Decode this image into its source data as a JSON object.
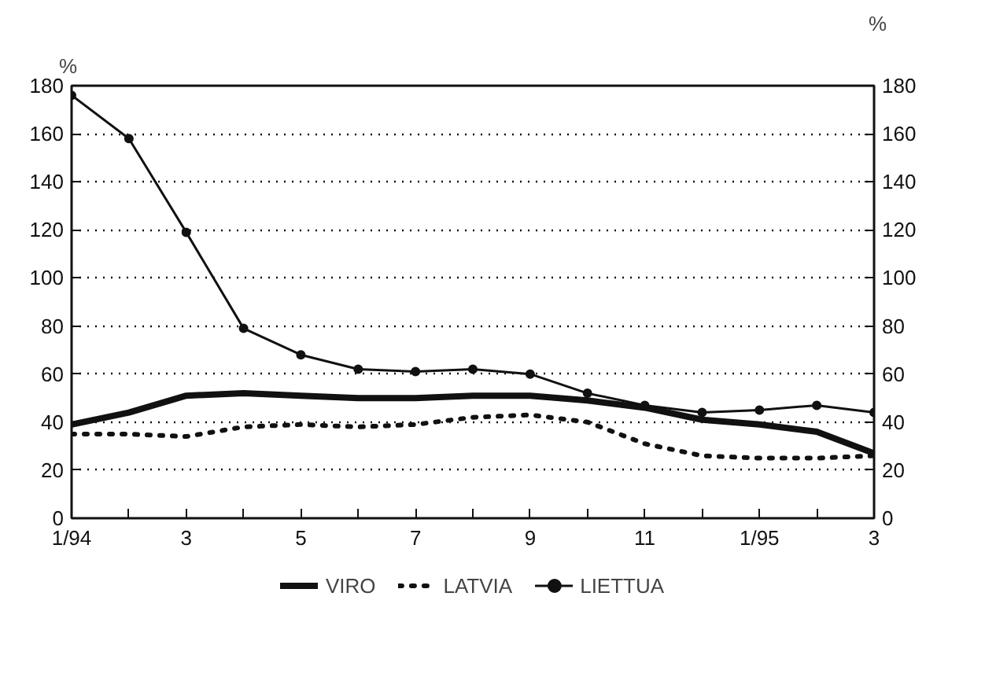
{
  "chart_data": {
    "type": "line",
    "categories": [
      "1/94",
      null,
      "3",
      null,
      "5",
      null,
      "7",
      null,
      "9",
      null,
      "11",
      null,
      "1/95",
      null,
      "3"
    ],
    "series": [
      {
        "name": "VIRO",
        "color": "#111111",
        "line_style": "solid",
        "marker": "none",
        "values": [
          39,
          44,
          51,
          52,
          51,
          50,
          50,
          51,
          51,
          49,
          46,
          41,
          39,
          36,
          27
        ]
      },
      {
        "name": "LATVIA",
        "color": "#111111",
        "line_style": "dotted",
        "marker": "none",
        "values": [
          35,
          35,
          34,
          38,
          39,
          38,
          39,
          42,
          43,
          40,
          31,
          26,
          25,
          25,
          26
        ]
      },
      {
        "name": "LIETTUA",
        "color": "#111111",
        "line_style": "solid",
        "marker": "circle",
        "values": [
          176,
          158,
          119,
          79,
          68,
          62,
          61,
          62,
          60,
          52,
          47,
          44,
          45,
          47,
          44
        ]
      }
    ],
    "ylabel": "%",
    "y2label": "%",
    "ylim": [
      0,
      180
    ],
    "yticks": [
      0,
      20,
      40,
      60,
      80,
      100,
      120,
      140,
      160,
      180
    ],
    "y2lim": [
      0,
      180
    ],
    "y2ticks": [
      0,
      20,
      40,
      60,
      80,
      100,
      120,
      140,
      160,
      180
    ],
    "grid": "y",
    "legend": "bottom"
  }
}
